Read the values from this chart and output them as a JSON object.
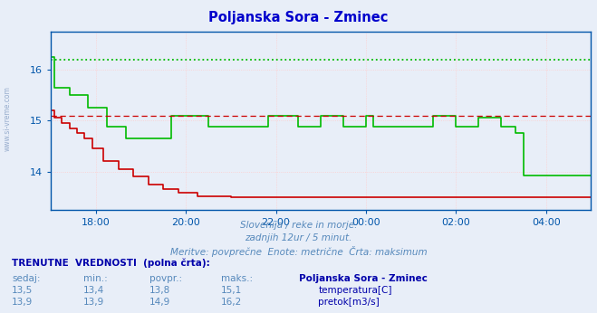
{
  "title": "Poljanska Sora - Zminec",
  "title_color": "#0000cc",
  "bg_color": "#e8eef8",
  "plot_bg_color": "#e8eef8",
  "axis_color": "#0055aa",
  "grid_color": "#ffcccc",
  "ylim": [
    13.25,
    16.75
  ],
  "yticks": [
    14,
    15,
    16
  ],
  "xtick_labels": [
    "18:00",
    "20:00",
    "22:00",
    "00:00",
    "02:00",
    "04:00"
  ],
  "xtick_positions": [
    1,
    3,
    5,
    7,
    9,
    11
  ],
  "max_temp": 15.1,
  "max_pretok": 16.2,
  "temp_color": "#cc0000",
  "pretok_color": "#00bb00",
  "watermark": "www.si-vreme.com",
  "watermark_color": "#5577aa",
  "subtitle1": "Slovenija / reke in morje.",
  "subtitle2": "zadnjih 12ur / 5 minut.",
  "subtitle3": "Meritve: povprečne  Enote: metrične  Črta: maksimum",
  "table_header": "TRENUTNE  VREDNOSTI  (polna črta):",
  "col_headers": [
    "sedaj:",
    "min.:",
    "povpr.:",
    "maks.:",
    "Poljanska Sora - Zminec"
  ],
  "temp_row": [
    "13,5",
    "13,4",
    "13,8",
    "15,1"
  ],
  "pretok_row": [
    "13,9",
    "13,9",
    "14,9",
    "16,2"
  ],
  "temp_label": "temperatura[C]",
  "pretok_label": "pretok[m3/s]",
  "temp_x": [
    0,
    0.08,
    0.08,
    0.25,
    0.25,
    0.42,
    0.42,
    0.58,
    0.58,
    0.75,
    0.75,
    0.92,
    0.92,
    1.17,
    1.17,
    1.5,
    1.5,
    1.83,
    1.83,
    2.17,
    2.17,
    2.5,
    2.5,
    2.83,
    2.83,
    3.25,
    3.25,
    4.0,
    4.0,
    5.0,
    5.0,
    6.0,
    6.0,
    7.0,
    7.0,
    8.0,
    8.0,
    9.0,
    9.0,
    10.0,
    10.0,
    11.0,
    11.0,
    12.0
  ],
  "temp_y": [
    15.2,
    15.2,
    15.05,
    15.05,
    14.95,
    14.95,
    14.85,
    14.85,
    14.75,
    14.75,
    14.65,
    14.65,
    14.45,
    14.45,
    14.2,
    14.2,
    14.05,
    14.05,
    13.9,
    13.9,
    13.75,
    13.75,
    13.65,
    13.65,
    13.58,
    13.58,
    13.52,
    13.52,
    13.5,
    13.5,
    13.5,
    13.5,
    13.5,
    13.5,
    13.5,
    13.5,
    13.5,
    13.5,
    13.5,
    13.5,
    13.5,
    13.5,
    13.5,
    13.5
  ],
  "pretok_x": [
    0,
    0.08,
    0.08,
    0.42,
    0.42,
    0.83,
    0.83,
    1.25,
    1.25,
    1.67,
    1.67,
    2.67,
    2.67,
    3.0,
    3.0,
    3.5,
    3.5,
    4.83,
    4.83,
    5.0,
    5.0,
    5.5,
    5.5,
    6.0,
    6.0,
    6.5,
    6.5,
    7.0,
    7.0,
    7.17,
    7.17,
    8.5,
    8.5,
    9.0,
    9.0,
    9.5,
    9.5,
    10.0,
    10.0,
    10.33,
    10.33,
    10.5,
    10.5,
    11.5,
    11.5,
    12.0
  ],
  "pretok_y": [
    16.25,
    16.25,
    15.65,
    15.65,
    15.5,
    15.5,
    15.25,
    15.25,
    14.88,
    14.88,
    14.65,
    14.65,
    15.1,
    15.1,
    15.1,
    15.1,
    14.88,
    14.88,
    15.1,
    15.1,
    15.1,
    15.1,
    14.88,
    14.88,
    15.1,
    15.1,
    14.88,
    14.88,
    15.1,
    15.1,
    14.88,
    14.88,
    15.1,
    15.1,
    14.88,
    14.88,
    15.05,
    15.05,
    14.88,
    14.88,
    14.75,
    14.75,
    13.93,
    13.93,
    13.93,
    13.93
  ]
}
